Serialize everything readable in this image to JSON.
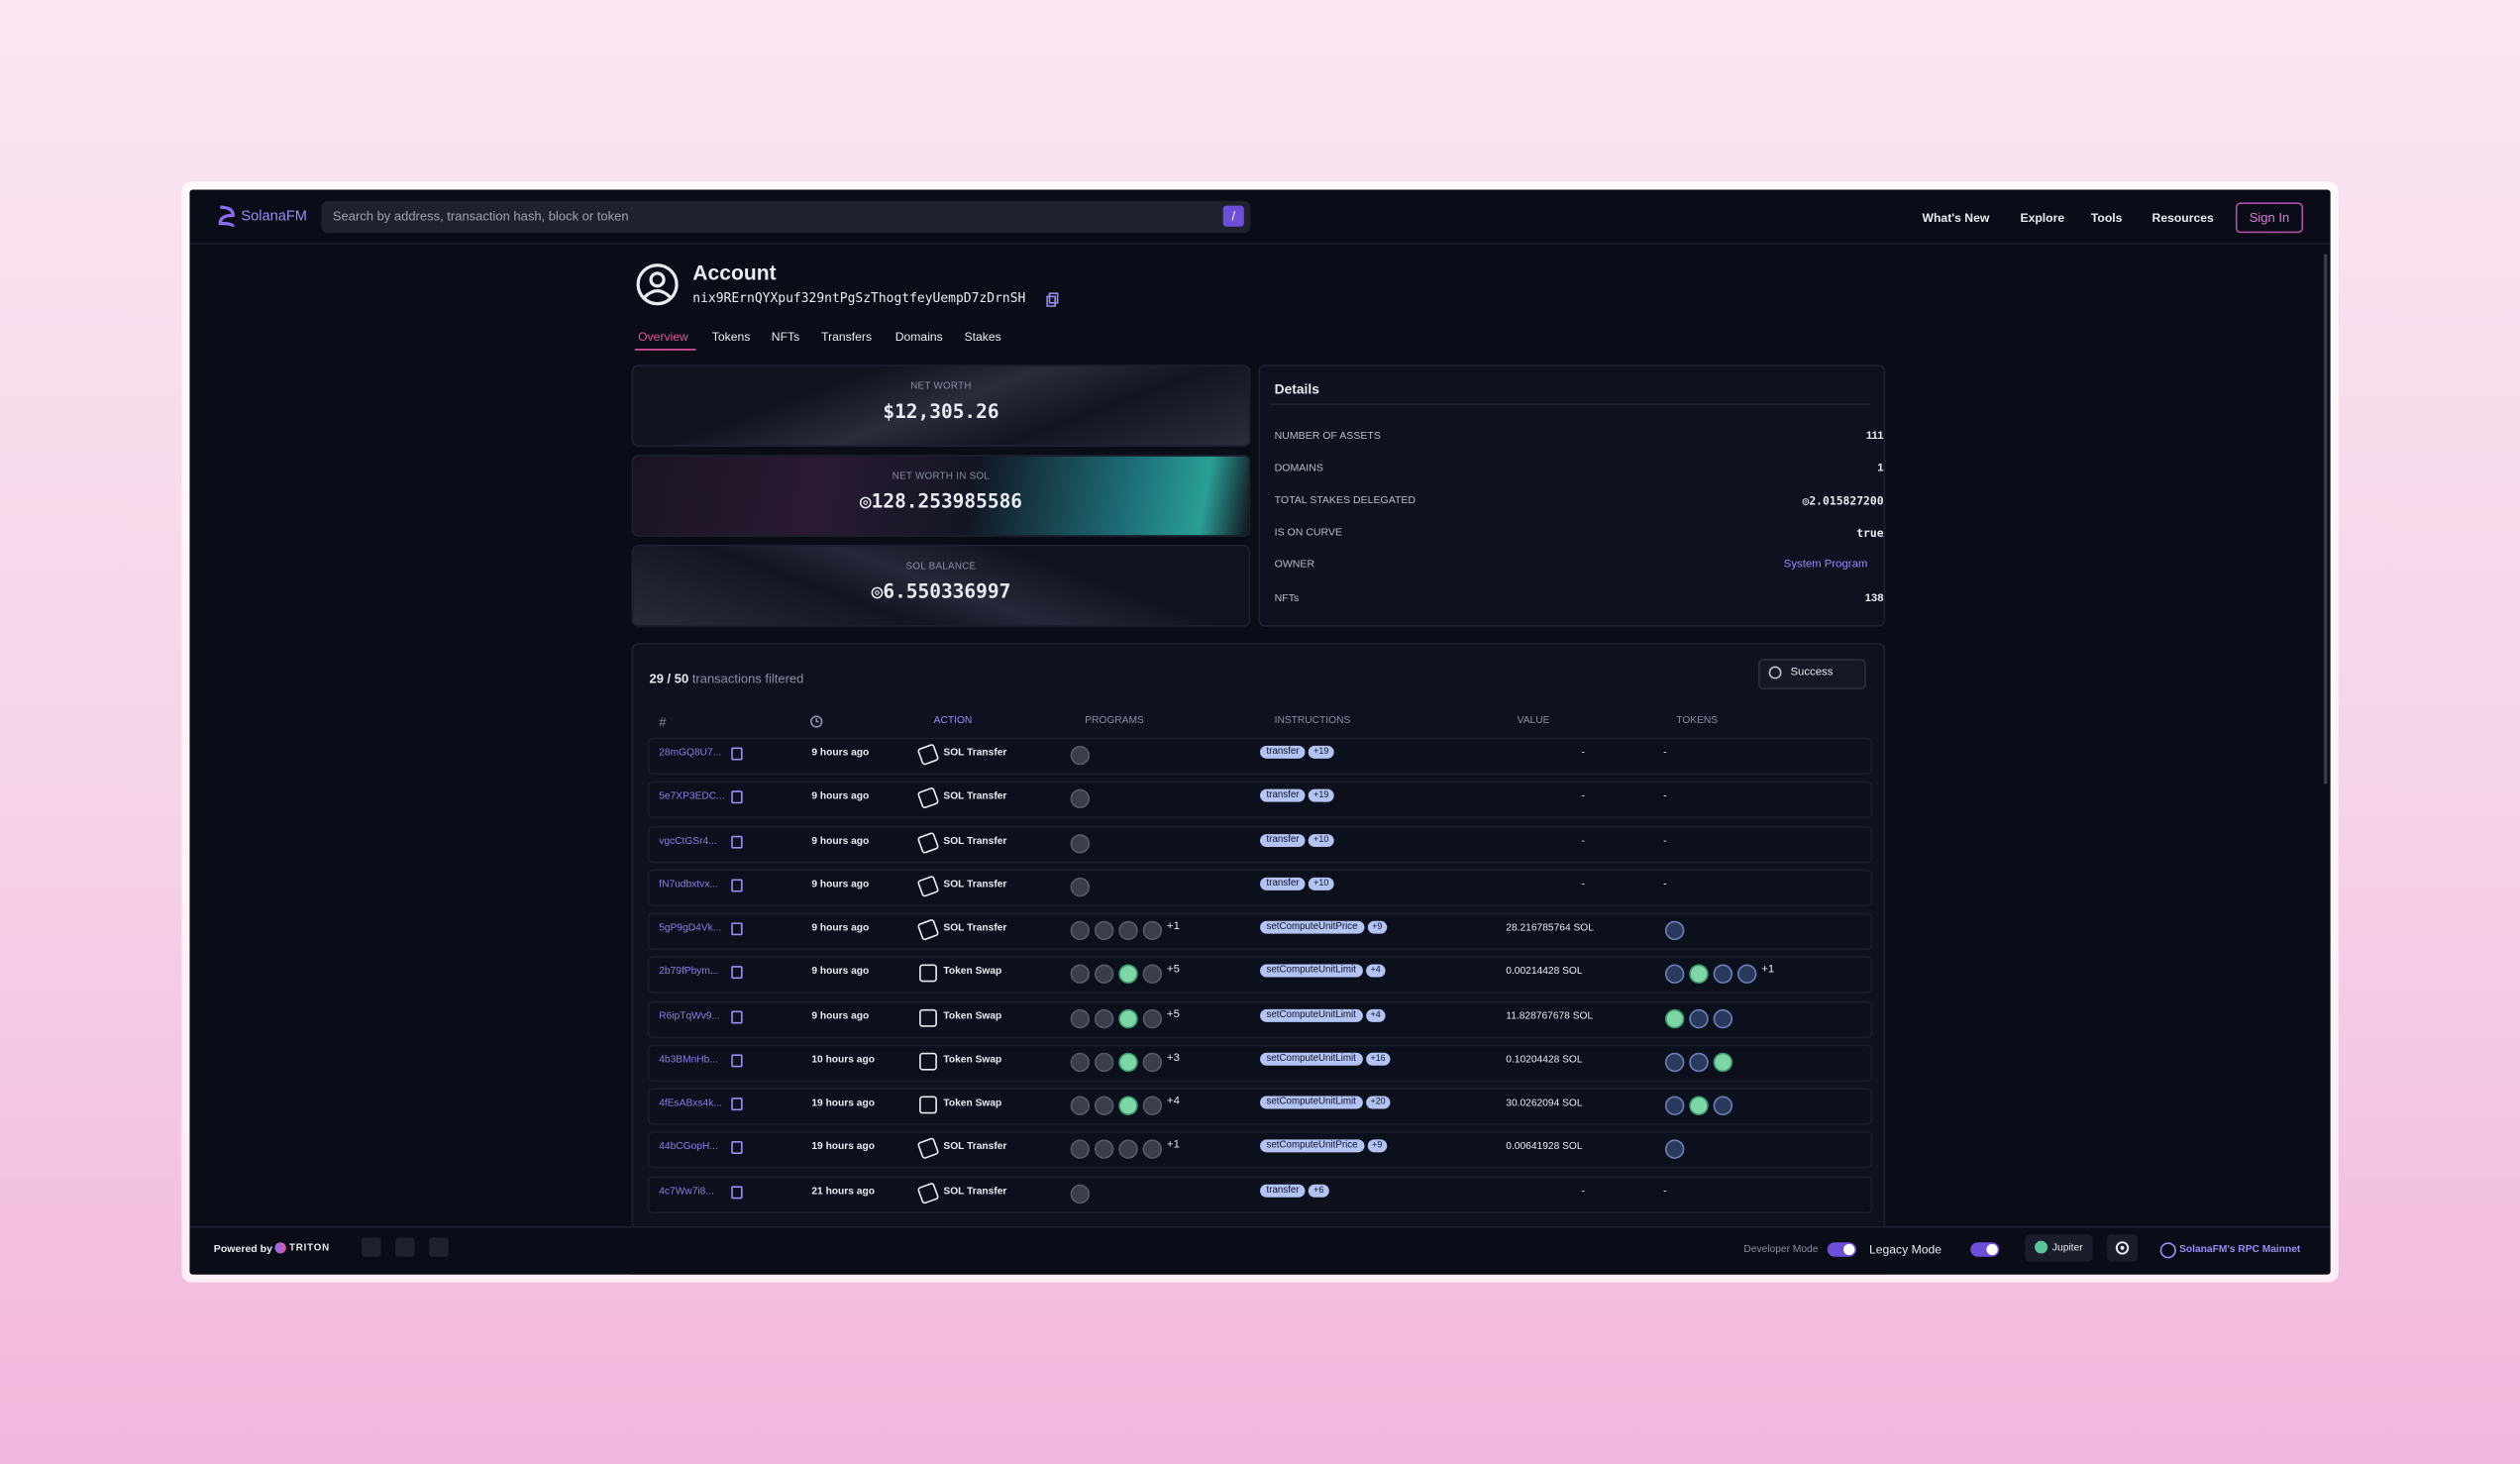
{
  "header": {
    "logo": "SolanaFM",
    "search_placeholder": "Search by address, transaction hash, block or token",
    "search_shortcut": "/",
    "nav": [
      "What's New",
      "Explore",
      "Tools",
      "Resources"
    ],
    "sign_in": "Sign In"
  },
  "account": {
    "title": "Account",
    "address": "nix9RErnQYXpuf329ntPgSzThogtfeyUempD7zDrnSH",
    "tabs": [
      "Overview",
      "Tokens",
      "NFTs",
      "Transfers",
      "Domains",
      "Stakes"
    ]
  },
  "cards": [
    {
      "label": "NET WORTH",
      "value": "$12,305.26"
    },
    {
      "label": "NET WORTH IN SOL",
      "value": "◎128.253985586"
    },
    {
      "label": "SOL BALANCE",
      "value": "◎6.550336997"
    }
  ],
  "details": {
    "title": "Details",
    "rows": [
      {
        "label": "NUMBER OF ASSETS",
        "value": "111"
      },
      {
        "label": "DOMAINS",
        "value": "1"
      },
      {
        "label": "TOTAL STAKES DELEGATED",
        "value": "◎2.015827200"
      },
      {
        "label": "IS ON CURVE",
        "value": "true"
      },
      {
        "label": "OWNER",
        "value": "System Program"
      },
      {
        "label": "NFTs",
        "value": "138"
      }
    ]
  },
  "transactions": {
    "count": "29 / 50",
    "count_text": "transactions filtered",
    "status_filter": "Success",
    "columns": [
      "#",
      "ACTION",
      "PROGRAMS",
      "INSTRUCTIONS",
      "VALUE",
      "TOKENS"
    ],
    "rows": [
      {
        "signature": "28mGQ8U7...",
        "time": "9 hours ago",
        "action": "SOL Transfer",
        "programs_more": null,
        "instruction": "transfer",
        "instruction_more": "+19",
        "value": "-",
        "tokens": "-",
        "tokens_more": null
      },
      {
        "signature": "5e7XP3EDC...",
        "time": "9 hours ago",
        "action": "SOL Transfer",
        "programs_more": null,
        "instruction": "transfer",
        "instruction_more": "+19",
        "value": "-",
        "tokens": "-",
        "tokens_more": null
      },
      {
        "signature": "vgcCtGSr4...",
        "time": "9 hours ago",
        "action": "SOL Transfer",
        "programs_more": null,
        "instruction": "transfer",
        "instruction_more": "+10",
        "value": "-",
        "tokens": "-",
        "tokens_more": null
      },
      {
        "signature": "fN7udbxtvx...",
        "time": "9 hours ago",
        "action": "SOL Transfer",
        "programs_more": null,
        "instruction": "transfer",
        "instruction_more": "+10",
        "value": "-",
        "tokens": "-",
        "tokens_more": null
      },
      {
        "signature": "5gP9gD4Vk...",
        "time": "9 hours ago",
        "action": "SOL Transfer",
        "programs_more": "+1",
        "instruction": "setComputeUnitPrice",
        "instruction_more": "+9",
        "value": "28.216785764 SOL",
        "tokens": null,
        "tokens_more": null
      },
      {
        "signature": "2b79fPbym...",
        "time": "9 hours ago",
        "action": "Token Swap",
        "programs_more": "+5",
        "instruction": "setComputeUnitLimit",
        "instruction_more": "+4",
        "value": "0.00214428 SOL",
        "tokens": null,
        "tokens_more": "+1"
      },
      {
        "signature": "R6ipTqWv9...",
        "time": "9 hours ago",
        "action": "Token Swap",
        "programs_more": "+5",
        "instruction": "setComputeUnitLimit",
        "instruction_more": "+4",
        "value": "11.828767678 SOL",
        "tokens": null,
        "tokens_more": null
      },
      {
        "signature": "4b3BMnHb...",
        "time": "10 hours ago",
        "action": "Token Swap",
        "programs_more": "+3",
        "instruction": "setComputeUnitLimit",
        "instruction_more": "+16",
        "value": "0.10204428 SOL",
        "tokens": null,
        "tokens_more": null
      },
      {
        "signature": "4fEsABxs4k...",
        "time": "19 hours ago",
        "action": "Token Swap",
        "programs_more": "+4",
        "instruction": "setComputeUnitLimit",
        "instruction_more": "+20",
        "value": "30.0262094 SOL",
        "tokens": null,
        "tokens_more": null
      },
      {
        "signature": "44bCGopH...",
        "time": "19 hours ago",
        "action": "SOL Transfer",
        "programs_more": "+1",
        "instruction": "setComputeUnitPrice",
        "instruction_more": "+9",
        "value": "0.00641928 SOL",
        "tokens": null,
        "tokens_more": null
      },
      {
        "signature": "4c7Ww7i8...",
        "time": "21 hours ago",
        "action": "SOL Transfer",
        "programs_more": null,
        "instruction": "transfer",
        "instruction_more": "+6",
        "value": "-",
        "tokens": "-",
        "tokens_more": null
      }
    ]
  },
  "footer": {
    "powered_by": "Powered by",
    "provider": "TRITON",
    "developer_mode": "Developer Mode",
    "legacy_mode": "Legacy Mode",
    "jupiter": "Jupiter",
    "rpc": "SolanaFM's RPC Mainnet"
  }
}
